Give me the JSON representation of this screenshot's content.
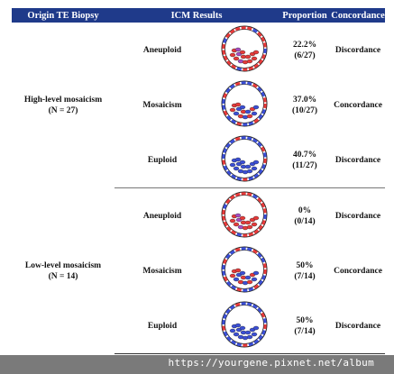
{
  "header": {
    "origin": "Origin TE Biopsy",
    "icm": "ICM Results",
    "proportion": "Proportion",
    "concordance": "Concordance"
  },
  "groups": [
    {
      "name": "High-level mosaicism",
      "n": "(N = 27)",
      "rows": [
        {
          "icm": "Aneuploid",
          "embryo": "aneuploid",
          "pct": "22.2%",
          "frac": "(6/27)",
          "concordance": "Discordance"
        },
        {
          "icm": "Mosaicism",
          "embryo": "mosaic",
          "pct": "37.0%",
          "frac": "(10/27)",
          "concordance": "Concordance"
        },
        {
          "icm": "Euploid",
          "embryo": "euploid",
          "pct": "40.7%",
          "frac": "(11/27)",
          "concordance": "Discordance"
        }
      ]
    },
    {
      "name": "Low-level mosaicism",
      "n": "(N = 14)",
      "rows": [
        {
          "icm": "Aneuploid",
          "embryo": "aneuploid",
          "pct": "0%",
          "frac": "(0/14)",
          "concordance": "Discordance"
        },
        {
          "icm": "Mosaicism",
          "embryo": "mosaic",
          "pct": "50%",
          "frac": "(7/14)",
          "concordance": "Concordance"
        },
        {
          "icm": "Euploid",
          "embryo": "euploid",
          "pct": "50%",
          "frac": "(7/14)",
          "concordance": "Discordance"
        }
      ]
    }
  ],
  "colors": {
    "header_bg": "#1f3a8a",
    "aneuploid_cell": "#e83a3a",
    "euploid_cell": "#3b4fd8",
    "footer_bg": "#7a7a7a"
  },
  "watermark": "https://yourgene.pixnet.net/album"
}
